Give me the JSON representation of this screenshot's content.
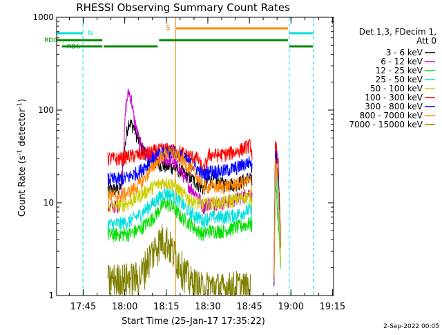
{
  "chart_data": {
    "type": "line",
    "title": "RHESSI Observing Summary Count Rates",
    "xlabel": "Start Time (25-Jan-17 17:35:22)",
    "ylabel_main": "Count Rate (s",
    "ylabel_sup1": "-1",
    "ylabel_mid": " detector",
    "ylabel_sup2": "-1",
    "ylabel_end": ")",
    "x_unit": "minutes after 17:35:22",
    "xlim": [
      0,
      100
    ],
    "ylim": [
      1,
      1000
    ],
    "y_scale": "log",
    "x_ticks": [
      {
        "label": "17:45",
        "x": 9.6
      },
      {
        "label": "18:00",
        "x": 24.6
      },
      {
        "label": "18:15",
        "x": 39.6
      },
      {
        "label": "18:30",
        "x": 54.6
      },
      {
        "label": "18:45",
        "x": 69.6
      },
      {
        "label": "19:00",
        "x": 84.6
      },
      {
        "label": "19:15",
        "x": 99.6
      }
    ],
    "y_ticks": [
      {
        "label": "1",
        "y": 1
      },
      {
        "label": "10",
        "y": 10
      },
      {
        "label": "100",
        "y": 100
      },
      {
        "label": "1000",
        "y": 1000
      }
    ],
    "legend_header": [
      "Det 1,3, FDecim 1,",
      "Att 0"
    ],
    "legend_position": "right",
    "series": [
      {
        "name": "3 - 6 keV",
        "color": "#000000",
        "points": [
          [
            18.5,
            14
          ],
          [
            23,
            14
          ],
          [
            25,
            50
          ],
          [
            26,
            75
          ],
          [
            28,
            65
          ],
          [
            30,
            42
          ],
          [
            33,
            32
          ],
          [
            36,
            27
          ],
          [
            39,
            25
          ],
          [
            42,
            24
          ],
          [
            45,
            22
          ],
          [
            48,
            19
          ],
          [
            51,
            16
          ],
          [
            53,
            14
          ],
          [
            55,
            18
          ],
          [
            60,
            16
          ],
          [
            65,
            16
          ],
          [
            70,
            19
          ],
          [
            78.5,
            1.5
          ],
          [
            79,
            35
          ],
          [
            80,
            18
          ],
          [
            81,
            3
          ]
        ]
      },
      {
        "name": "6 - 12 keV",
        "color": "#cc00cc",
        "points": [
          [
            18.5,
            9
          ],
          [
            23,
            9.5
          ],
          [
            25,
            110
          ],
          [
            26,
            160
          ],
          [
            27,
            130
          ],
          [
            28,
            80
          ],
          [
            30,
            45
          ],
          [
            32,
            34
          ],
          [
            35,
            30
          ],
          [
            39,
            30
          ],
          [
            42,
            28
          ],
          [
            45,
            22
          ],
          [
            48,
            15
          ],
          [
            51,
            12
          ],
          [
            53,
            9
          ],
          [
            55,
            10
          ],
          [
            60,
            10
          ],
          [
            65,
            11
          ],
          [
            70,
            13
          ],
          [
            78.5,
            1.5
          ],
          [
            79,
            40
          ],
          [
            80,
            15
          ],
          [
            81,
            3
          ]
        ]
      },
      {
        "name": "12 - 25 keV",
        "color": "#00dd00",
        "points": [
          [
            18.5,
            4.5
          ],
          [
            23,
            4.6
          ],
          [
            26,
            4.6
          ],
          [
            30,
            5.2
          ],
          [
            35,
            7
          ],
          [
            39,
            10
          ],
          [
            42,
            9
          ],
          [
            45,
            7
          ],
          [
            48,
            6
          ],
          [
            51,
            5
          ],
          [
            53,
            4.6
          ],
          [
            55,
            5
          ],
          [
            60,
            5
          ],
          [
            65,
            5.5
          ],
          [
            70,
            6
          ],
          [
            78.5,
            1.5
          ],
          [
            79,
            20
          ],
          [
            80,
            6
          ],
          [
            81,
            2
          ]
        ]
      },
      {
        "name": "25 - 50 keV",
        "color": "#00dddd",
        "points": [
          [
            18.5,
            5.8
          ],
          [
            23,
            6
          ],
          [
            26,
            6.3
          ],
          [
            30,
            7.5
          ],
          [
            35,
            10
          ],
          [
            39,
            13
          ],
          [
            42,
            12
          ],
          [
            45,
            10
          ],
          [
            48,
            8
          ],
          [
            51,
            7
          ],
          [
            53,
            6.5
          ],
          [
            55,
            7
          ],
          [
            60,
            7
          ],
          [
            65,
            7.5
          ],
          [
            70,
            8.5
          ],
          [
            78.5,
            1.5
          ],
          [
            79,
            25
          ],
          [
            80,
            9
          ],
          [
            81,
            2
          ]
        ]
      },
      {
        "name": "50 - 100 keV",
        "color": "#cccc00",
        "points": [
          [
            18.5,
            9
          ],
          [
            23,
            9.5
          ],
          [
            26,
            10
          ],
          [
            30,
            12
          ],
          [
            35,
            15
          ],
          [
            39,
            17
          ],
          [
            42,
            16
          ],
          [
            45,
            13
          ],
          [
            48,
            11
          ],
          [
            51,
            10
          ],
          [
            53,
            9.5
          ],
          [
            55,
            10
          ],
          [
            60,
            10
          ],
          [
            65,
            11
          ],
          [
            70,
            12
          ],
          [
            78.5,
            1.5
          ],
          [
            79,
            30
          ],
          [
            80,
            12
          ],
          [
            81,
            2
          ]
        ]
      },
      {
        "name": "100 - 300 keV",
        "color": "#ff0000",
        "points": [
          [
            18.5,
            30
          ],
          [
            23,
            30
          ],
          [
            26,
            32
          ],
          [
            30,
            33
          ],
          [
            35,
            36
          ],
          [
            39,
            38
          ],
          [
            42,
            37
          ],
          [
            45,
            35
          ],
          [
            48,
            32
          ],
          [
            51,
            30
          ],
          [
            53,
            22
          ],
          [
            55,
            33
          ],
          [
            60,
            33
          ],
          [
            65,
            36
          ],
          [
            70,
            42
          ],
          [
            78.5,
            1.5
          ],
          [
            79,
            45
          ],
          [
            80,
            30
          ],
          [
            81,
            3
          ]
        ]
      },
      {
        "name": "300 - 800 keV",
        "color": "#0000ff",
        "points": [
          [
            18.5,
            18
          ],
          [
            23,
            18
          ],
          [
            26,
            19
          ],
          [
            30,
            22
          ],
          [
            35,
            30
          ],
          [
            39,
            36
          ],
          [
            42,
            36
          ],
          [
            45,
            32
          ],
          [
            48,
            27
          ],
          [
            51,
            23
          ],
          [
            53,
            20
          ],
          [
            55,
            22
          ],
          [
            60,
            22
          ],
          [
            65,
            24
          ],
          [
            70,
            28
          ],
          [
            78.5,
            1.5
          ],
          [
            79,
            38
          ],
          [
            80,
            22
          ],
          [
            81,
            3
          ]
        ]
      },
      {
        "name": "800 - 7000 keV",
        "color": "#ff8800",
        "points": [
          [
            18.5,
            12
          ],
          [
            23,
            12
          ],
          [
            26,
            13
          ],
          [
            30,
            16
          ],
          [
            35,
            25
          ],
          [
            39,
            34
          ],
          [
            42,
            35
          ],
          [
            45,
            30
          ],
          [
            48,
            24
          ],
          [
            51,
            19
          ],
          [
            53,
            15
          ],
          [
            55,
            15
          ],
          [
            60,
            15
          ],
          [
            65,
            16
          ],
          [
            70,
            17
          ],
          [
            78.5,
            1.5
          ],
          [
            79,
            32
          ],
          [
            80,
            16
          ],
          [
            81,
            3
          ]
        ]
      },
      {
        "name": "7000 - 15000 keV",
        "color": "#808000",
        "points": [
          [
            18.5,
            1.5
          ],
          [
            30,
            1.6
          ],
          [
            33,
            2.5
          ],
          [
            36,
            3.5
          ],
          [
            38,
            4.2
          ],
          [
            40,
            4
          ],
          [
            42,
            3
          ],
          [
            45,
            2.2
          ],
          [
            48,
            1.5
          ],
          [
            51,
            1.3
          ],
          [
            53,
            1.2
          ],
          [
            55,
            1.3
          ],
          [
            60,
            1.2
          ],
          [
            65,
            1.3
          ],
          [
            70,
            1.2
          ]
        ]
      }
    ],
    "annotations": {
      "night_label": "N",
      "saa_label": "S",
      "rd0_label": "RD0",
      "rd6_label": "RD6",
      "night_intervals": [
        [
          -2,
          9.5
        ],
        [
          84,
          92.7
        ]
      ],
      "night_markers_x": [
        -1.5,
        9.5,
        84,
        92.7
      ],
      "saa_intervals": [
        [
          43,
          83.5
        ]
      ],
      "saa_marker_x": 43,
      "rd0_intervals": [
        [
          -2,
          16.5
        ],
        [
          37,
          83.5
        ]
      ],
      "rd6_intervals": [
        [
          2,
          16.5
        ],
        [
          17,
          36.5
        ],
        [
          84,
          92.5
        ]
      ]
    }
  },
  "footer": {
    "date_stamp": "2-Sep-2022 00:05"
  }
}
